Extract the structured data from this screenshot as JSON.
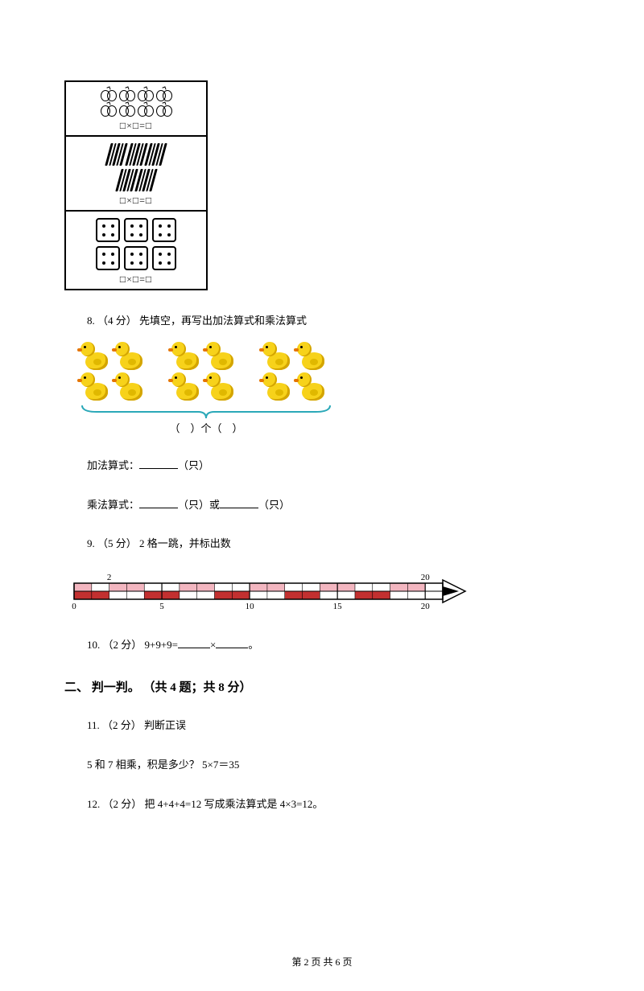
{
  "box": {
    "formula": "□×□=□"
  },
  "q8": {
    "prefix": "8. （4 分） 先填空，再写出加法算式和乘法算式",
    "brace_label": "（　）个（　）",
    "add_label": "加法算式：",
    "add_unit": "（只）",
    "mul_label": "乘法算式：",
    "mul_unit1": "（只）或",
    "mul_unit2": "（只）"
  },
  "q9": {
    "text": "9. （5 分） 2 格一跳，并标出数",
    "numline": {
      "start": 0,
      "end": 21,
      "top_labels": [
        {
          "x": 2,
          "t": "2"
        },
        {
          "x": 20,
          "t": "20"
        }
      ],
      "bottom_labels": [
        {
          "x": 0,
          "t": "0"
        },
        {
          "x": 5,
          "t": "5"
        },
        {
          "x": 10,
          "t": "10"
        },
        {
          "x": 15,
          "t": "15"
        },
        {
          "x": 20,
          "t": "20"
        }
      ],
      "red_segments": [
        [
          0,
          2
        ],
        [
          4,
          6
        ],
        [
          8,
          10
        ],
        [
          12,
          14
        ],
        [
          16,
          18
        ]
      ],
      "pink_upper": [
        [
          0,
          1
        ],
        [
          2,
          4
        ],
        [
          6,
          8
        ],
        [
          10,
          12
        ],
        [
          14,
          16
        ],
        [
          18,
          20
        ]
      ],
      "colors": {
        "red": "#c23030",
        "pink": "#f3b6c0",
        "line": "#000000",
        "bg": "#ffffff"
      }
    }
  },
  "q10": {
    "text_a": "10. （2 分） 9+9+9=",
    "text_b": "×",
    "text_c": "。"
  },
  "section2": "二、 判一判。 （共 4 题；共 8 分）",
  "q11": {
    "line1": "11. （2 分） 判断正误",
    "line2": "5 和 7 相乘，积是多少？ 5×7＝35"
  },
  "q12": {
    "text": "12. （2 分） 把 4+4+4=12 写成乘法算式是 4×3=12。"
  },
  "footer": "第 2 页 共 6 页"
}
